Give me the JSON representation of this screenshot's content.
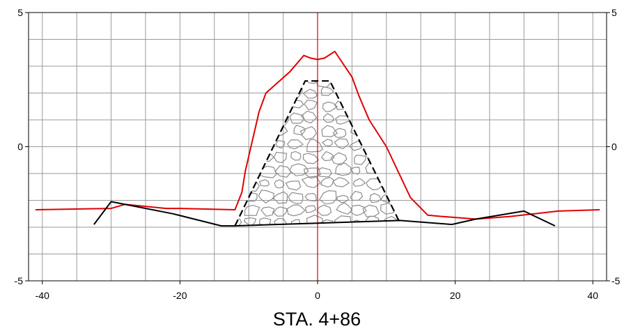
{
  "chart_data": {
    "type": "line",
    "title": "STA. 4+86",
    "xlabel": "",
    "ylabel": "",
    "xlim": [
      -42,
      42
    ],
    "ylim": [
      -5,
      5
    ],
    "grid": true,
    "x_ticks": [
      -40,
      -20,
      0,
      20,
      40
    ],
    "y_ticks": [
      -5,
      0,
      5
    ],
    "x_tick_labels": [
      "-40",
      "-20",
      "0",
      "20",
      "40"
    ],
    "y_tick_labels": [
      "-5",
      "0",
      "5"
    ],
    "centerline_x": 0,
    "series": [
      {
        "color": "#e00000",
        "points": [
          [
            -41,
            -2.35
          ],
          [
            -30,
            -2.3
          ],
          [
            -28,
            -2.15
          ],
          [
            -22,
            -2.3
          ],
          [
            -20,
            -2.3
          ],
          [
            -12,
            -2.35
          ],
          [
            -11,
            -1.7
          ],
          [
            -10.5,
            -0.9
          ],
          [
            -8.5,
            1.3
          ],
          [
            -7.5,
            2.0
          ],
          [
            -4,
            2.8
          ],
          [
            -2,
            3.4
          ],
          [
            -1,
            3.3
          ],
          [
            0,
            3.25
          ],
          [
            1,
            3.3
          ],
          [
            2.5,
            3.55
          ],
          [
            5,
            2.6
          ],
          [
            6,
            1.9
          ],
          [
            7.5,
            1.0
          ],
          [
            10,
            0.0
          ],
          [
            13.5,
            -1.9
          ],
          [
            16,
            -2.55
          ],
          [
            18,
            -2.6
          ],
          [
            23,
            -2.7
          ],
          [
            28,
            -2.6
          ],
          [
            35,
            -2.4
          ],
          [
            41,
            -2.35
          ]
        ]
      },
      {
        "color": "#000000",
        "points": [
          [
            -32.5,
            -2.9
          ],
          [
            -30,
            -2.05
          ],
          [
            -21,
            -2.5
          ],
          [
            -14,
            -2.95
          ],
          [
            -12,
            -2.95
          ],
          [
            0,
            -2.85
          ],
          [
            12,
            -2.75
          ],
          [
            19.5,
            -2.9
          ],
          [
            23,
            -2.7
          ],
          [
            30,
            -2.4
          ],
          [
            34.5,
            -2.95
          ]
        ]
      },
      {
        "color": "#000000",
        "dashed": true,
        "fill": "cobblestone",
        "points": [
          [
            -12,
            -2.95
          ],
          [
            -1.8,
            2.45
          ],
          [
            1.8,
            2.45
          ],
          [
            11.8,
            -2.75
          ]
        ]
      }
    ]
  }
}
